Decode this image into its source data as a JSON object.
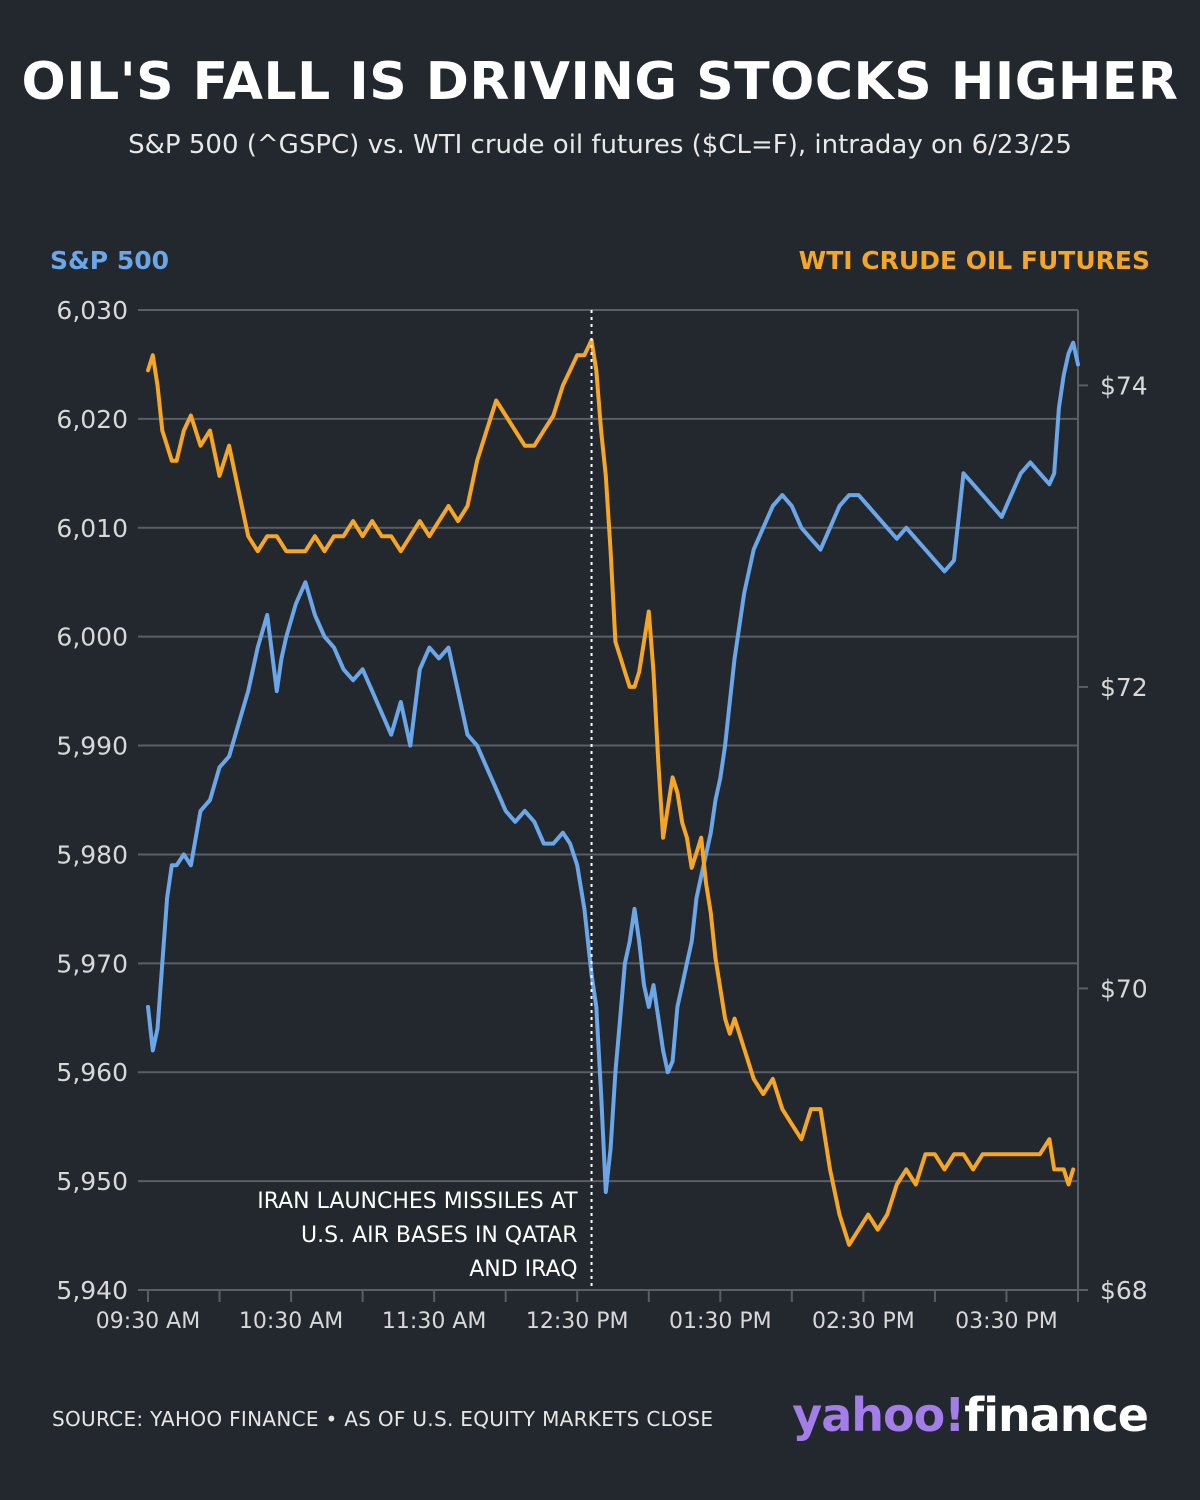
{
  "header": {
    "title": "OIL'S FALL IS DRIVING STOCKS HIGHER",
    "subtitle": "S&P 500 (^GSPC) vs. WTI crude oil futures ($CL=F), intraday on 6/23/25"
  },
  "footer": {
    "source": "SOURCE: YAHOO FINANCE • AS OF U.S. EQUITY MARKETS CLOSE",
    "logo_yahoo": "yahoo!",
    "logo_finance": "finance"
  },
  "chart_data": {
    "type": "line",
    "left_axis_title": "S&P 500",
    "right_axis_title": "WTI CRUDE OIL FUTURES",
    "colors": {
      "sp500": "#6aa6e8",
      "wti": "#f5a623",
      "background": "#23272e",
      "grid": "#5a5e66"
    },
    "grid": true,
    "x_ticks": [
      "09:30 AM",
      "10:30 AM",
      "11:30 AM",
      "12:30 PM",
      "01:30 PM",
      "02:30 PM",
      "03:30 PM"
    ],
    "x_range_minutes": [
      0,
      390
    ],
    "left_ylim": [
      5940,
      6030
    ],
    "left_ticks": [
      "5,940",
      "5,950",
      "5,960",
      "5,970",
      "5,980",
      "5,990",
      "6,000",
      "6,010",
      "6,020",
      "6,030"
    ],
    "left_tick_values": [
      5940,
      5950,
      5960,
      5970,
      5980,
      5990,
      6000,
      6010,
      6020,
      6030
    ],
    "right_ylim": [
      68,
      74.5
    ],
    "right_ticks": [
      "$68",
      "$70",
      "$72",
      "$74"
    ],
    "right_tick_values": [
      68,
      70,
      72,
      74
    ],
    "annotation": {
      "x_minutes": 186,
      "lines": [
        "IRAN LAUNCHES MISSILES AT",
        "U.S. AIR BASES IN QATAR",
        "AND IRAQ"
      ]
    },
    "series": [
      {
        "name": "S&P 500",
        "axis": "left",
        "x": [
          0,
          2,
          4,
          6,
          8,
          10,
          12,
          15,
          18,
          22,
          26,
          30,
          34,
          38,
          42,
          46,
          50,
          54,
          56,
          58,
          62,
          66,
          70,
          74,
          78,
          82,
          86,
          90,
          94,
          98,
          102,
          106,
          110,
          114,
          118,
          122,
          126,
          130,
          134,
          138,
          142,
          146,
          150,
          154,
          158,
          162,
          166,
          170,
          174,
          177,
          180,
          183,
          186,
          188,
          190,
          192,
          194,
          196,
          198,
          200,
          202,
          204,
          206,
          208,
          210,
          212,
          214,
          216,
          218,
          220,
          222,
          224,
          226,
          228,
          230,
          232,
          234,
          236,
          238,
          240,
          242,
          244,
          246,
          250,
          254,
          258,
          262,
          266,
          270,
          274,
          278,
          282,
          286,
          290,
          294,
          298,
          302,
          306,
          310,
          314,
          318,
          322,
          326,
          330,
          334,
          338,
          342,
          346,
          350,
          354,
          358,
          362,
          366,
          370,
          374,
          378,
          380,
          382,
          384,
          386,
          388,
          390
        ],
        "values": [
          5966,
          5962,
          5964,
          5970,
          5976,
          5979,
          5979,
          5980,
          5979,
          5984,
          5985,
          5988,
          5989,
          5992,
          5995,
          5999,
          6002,
          5995,
          5998,
          6000,
          6003,
          6005,
          6002,
          6000,
          5999,
          5997,
          5996,
          5997,
          5995,
          5993,
          5991,
          5994,
          5990,
          5997,
          5999,
          5998,
          5999,
          5995,
          5991,
          5990,
          5988,
          5986,
          5984,
          5983,
          5984,
          5983,
          5981,
          5981,
          5982,
          5981,
          5979,
          5975,
          5969,
          5966,
          5958,
          5949,
          5953,
          5960,
          5965,
          5970,
          5972,
          5975,
          5972,
          5968,
          5966,
          5968,
          5965,
          5962,
          5960,
          5961,
          5966,
          5968,
          5970,
          5972,
          5976,
          5978,
          5980,
          5982,
          5985,
          5987,
          5990,
          5994,
          5998,
          6004,
          6008,
          6010,
          6012,
          6013,
          6012,
          6010,
          6009,
          6008,
          6010,
          6012,
          6013,
          6013,
          6012,
          6011,
          6010,
          6009,
          6010,
          6009,
          6008,
          6007,
          6006,
          6007,
          6015,
          6014,
          6013,
          6012,
          6011,
          6013,
          6015,
          6016,
          6015,
          6014,
          6015,
          6021,
          6024,
          6026,
          6027,
          6025
        ]
      },
      {
        "name": "WTI CRUDE OIL FUTURES",
        "axis": "right",
        "x": [
          0,
          2,
          4,
          6,
          8,
          10,
          12,
          15,
          18,
          22,
          26,
          30,
          34,
          38,
          42,
          46,
          50,
          54,
          58,
          62,
          66,
          70,
          74,
          78,
          82,
          86,
          90,
          94,
          98,
          102,
          106,
          110,
          114,
          118,
          122,
          126,
          130,
          134,
          138,
          142,
          146,
          150,
          154,
          158,
          162,
          166,
          170,
          174,
          177,
          180,
          183,
          186,
          188,
          190,
          192,
          194,
          196,
          198,
          200,
          202,
          204,
          206,
          208,
          210,
          212,
          214,
          216,
          218,
          220,
          222,
          224,
          226,
          228,
          230,
          232,
          234,
          236,
          238,
          240,
          242,
          244,
          246,
          250,
          254,
          258,
          262,
          266,
          270,
          274,
          278,
          282,
          286,
          290,
          294,
          298,
          302,
          306,
          310,
          314,
          318,
          322,
          326,
          330,
          334,
          338,
          342,
          346,
          350,
          354,
          358,
          362,
          366,
          370,
          374,
          378,
          380,
          382,
          384,
          386,
          388
        ],
        "values": [
          74.1,
          74.2,
          74.0,
          73.7,
          73.6,
          73.5,
          73.5,
          73.7,
          73.8,
          73.6,
          73.7,
          73.4,
          73.6,
          73.3,
          73.0,
          72.9,
          73.0,
          73.0,
          72.9,
          72.9,
          72.9,
          73.0,
          72.9,
          73.0,
          73.0,
          73.1,
          73.0,
          73.1,
          73.0,
          73.0,
          72.9,
          73.0,
          73.1,
          73.0,
          73.1,
          73.2,
          73.1,
          73.2,
          73.5,
          73.7,
          73.9,
          73.8,
          73.7,
          73.6,
          73.6,
          73.7,
          73.8,
          74.0,
          74.1,
          74.2,
          74.2,
          74.3,
          74.1,
          73.7,
          73.4,
          72.9,
          72.3,
          72.2,
          72.1,
          72.0,
          72.0,
          72.1,
          72.3,
          72.5,
          72.1,
          71.5,
          71.0,
          71.2,
          71.4,
          71.3,
          71.1,
          71.0,
          70.8,
          70.9,
          71.0,
          70.7,
          70.5,
          70.2,
          70.0,
          69.8,
          69.7,
          69.8,
          69.6,
          69.4,
          69.3,
          69.4,
          69.2,
          69.1,
          69.0,
          69.2,
          69.2,
          68.8,
          68.5,
          68.3,
          68.4,
          68.5,
          68.4,
          68.5,
          68.7,
          68.8,
          68.7,
          68.9,
          68.9,
          68.8,
          68.9,
          68.9,
          68.8,
          68.9,
          68.9,
          68.9,
          68.9,
          68.9,
          68.9,
          68.9,
          69.0,
          68.8,
          68.8,
          68.8,
          68.7,
          68.8
        ]
      }
    ]
  }
}
